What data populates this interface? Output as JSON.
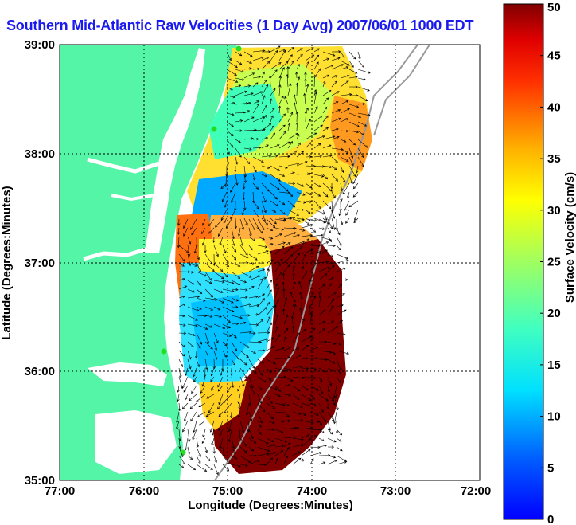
{
  "title": "Southern Mid-Atlantic Raw Velocities (1 Day Avg) 2007/06/01 1000 EDT",
  "map": {
    "xlabel": "Longitude (Degrees:Minutes)",
    "ylabel": "Latitude (Degrees:Minutes)",
    "x_ticks": [
      "77:00",
      "76:00",
      "75:00",
      "74:00",
      "73:00",
      "72:00"
    ],
    "y_ticks": [
      "35:00",
      "36:00",
      "37:00",
      "38:00",
      "39:00"
    ],
    "xlim_deg": [
      77,
      72
    ],
    "ylim_deg": [
      35,
      39
    ],
    "land_color": "#55f5a8",
    "water_color": "#ffffff",
    "radar_site_color": "#22dd22"
  },
  "colorbar": {
    "label": "Surface Velocity (cm/s)",
    "ticks": [
      "0",
      "5",
      "10",
      "15",
      "20",
      "25",
      "30",
      "35",
      "40",
      "45",
      "50"
    ],
    "range": [
      0,
      50
    ],
    "colormap": "jet"
  }
}
